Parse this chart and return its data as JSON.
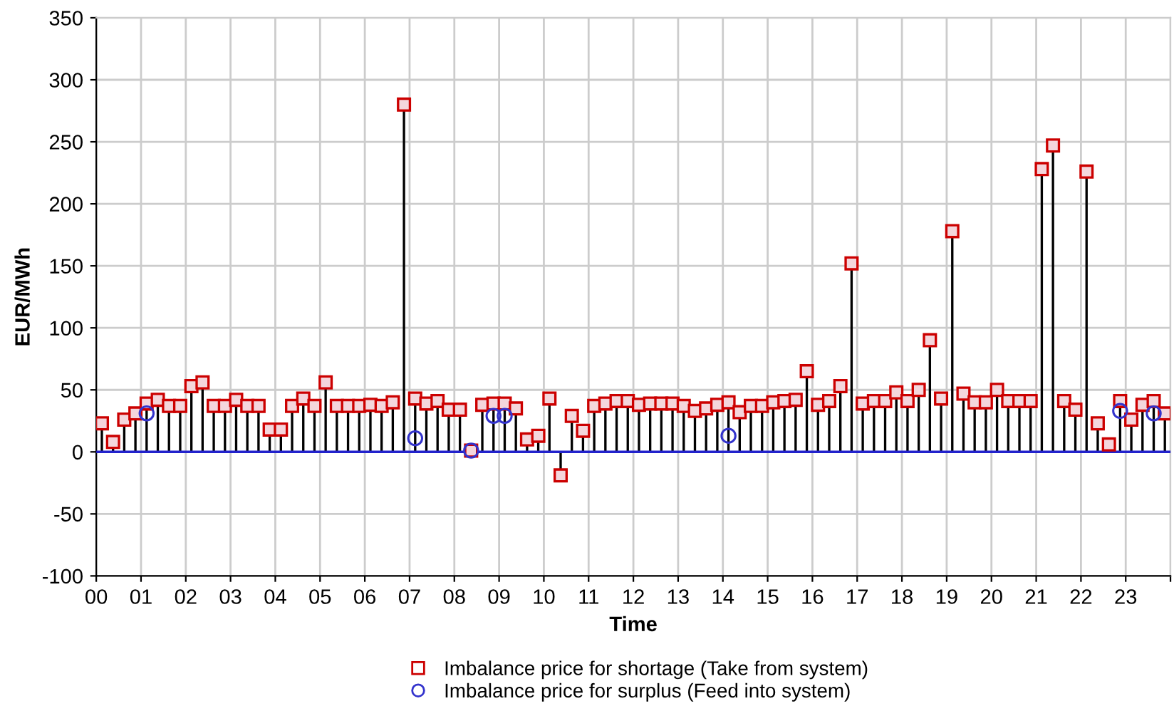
{
  "chart_data": {
    "type": "lollipop",
    "xlabel": "Time",
    "ylabel": "EUR/MWh",
    "x": [
      0.125,
      0.375,
      0.625,
      0.875,
      1.125,
      1.375,
      1.625,
      1.875,
      2.125,
      2.375,
      2.625,
      2.875,
      3.125,
      3.375,
      3.625,
      3.875,
      4.125,
      4.375,
      4.625,
      4.875,
      5.125,
      5.375,
      5.625,
      5.875,
      6.125,
      6.375,
      6.625,
      6.875,
      7.125,
      7.375,
      7.625,
      7.875,
      8.125,
      8.375,
      8.625,
      8.875,
      9.125,
      9.375,
      9.625,
      9.875,
      10.125,
      10.375,
      10.625,
      10.875,
      11.125,
      11.375,
      11.625,
      11.875,
      12.125,
      12.375,
      12.625,
      12.875,
      13.125,
      13.375,
      13.625,
      13.875,
      14.125,
      14.375,
      14.625,
      14.875,
      15.125,
      15.375,
      15.625,
      15.875,
      16.125,
      16.375,
      16.625,
      16.875,
      17.125,
      17.375,
      17.625,
      17.875,
      18.125,
      18.375,
      18.625,
      18.875,
      19.125,
      19.375,
      19.625,
      19.875,
      20.125,
      20.375,
      20.625,
      20.875,
      21.125,
      21.375,
      21.625,
      21.875,
      22.125,
      22.375,
      22.625,
      22.875,
      23.125,
      23.375,
      23.625,
      23.875
    ],
    "series": [
      {
        "name": "Imbalance price for shortage (Take from system)",
        "marker": "square",
        "color": "#cc0000",
        "values": [
          23,
          8,
          26,
          31,
          39,
          42,
          37,
          37,
          53,
          56,
          37,
          37,
          42,
          37,
          37,
          18,
          18,
          37,
          43,
          37,
          56,
          37,
          37,
          37,
          38,
          37,
          40,
          280,
          43,
          39,
          41,
          34,
          34,
          1,
          38,
          39,
          39,
          35,
          10,
          13,
          43,
          -19,
          29,
          17,
          37,
          39,
          41,
          41,
          38,
          39,
          39,
          39,
          37,
          33,
          35,
          38,
          40,
          32,
          37,
          37,
          40,
          41,
          42,
          65,
          38,
          41,
          53,
          152,
          39,
          41,
          41,
          48,
          41,
          50,
          90,
          43,
          178,
          47,
          40,
          40,
          50,
          41,
          41,
          41,
          228,
          247,
          41,
          34,
          226,
          23,
          6,
          41,
          26,
          38,
          41,
          31
        ]
      },
      {
        "name": "Imbalance price for surplus (Feed into system)",
        "type": "scatter",
        "marker": "circle",
        "color": "#3333cc",
        "values": [
          null,
          null,
          null,
          null,
          31,
          null,
          null,
          null,
          null,
          null,
          null,
          null,
          null,
          null,
          null,
          null,
          null,
          null,
          null,
          null,
          null,
          null,
          null,
          null,
          null,
          null,
          null,
          null,
          11,
          null,
          null,
          null,
          null,
          1,
          null,
          29,
          29,
          null,
          null,
          null,
          null,
          null,
          null,
          null,
          null,
          null,
          null,
          null,
          null,
          null,
          null,
          null,
          null,
          null,
          null,
          null,
          13,
          null,
          null,
          null,
          null,
          null,
          null,
          null,
          null,
          null,
          null,
          null,
          null,
          null,
          null,
          null,
          null,
          null,
          null,
          null,
          null,
          null,
          null,
          null,
          null,
          null,
          null,
          null,
          null,
          null,
          null,
          null,
          null,
          null,
          null,
          33,
          null,
          null,
          31,
          null
        ]
      }
    ],
    "xlim": [
      0,
      24
    ],
    "xticks": [
      {
        "value": 0,
        "label": "00"
      },
      {
        "value": 1,
        "label": "01"
      },
      {
        "value": 2,
        "label": "02"
      },
      {
        "value": 3,
        "label": "03"
      },
      {
        "value": 4,
        "label": "04"
      },
      {
        "value": 5,
        "label": "05"
      },
      {
        "value": 6,
        "label": "06"
      },
      {
        "value": 7,
        "label": "07"
      },
      {
        "value": 8,
        "label": "08"
      },
      {
        "value": 9,
        "label": "09"
      },
      {
        "value": 10,
        "label": "10"
      },
      {
        "value": 11,
        "label": "11"
      },
      {
        "value": 12,
        "label": "12"
      },
      {
        "value": 13,
        "label": "13"
      },
      {
        "value": 14,
        "label": "14"
      },
      {
        "value": 15,
        "label": "15"
      },
      {
        "value": 16,
        "label": "16"
      },
      {
        "value": 17,
        "label": "17"
      },
      {
        "value": 18,
        "label": "18"
      },
      {
        "value": 19,
        "label": "19"
      },
      {
        "value": 20,
        "label": "20"
      },
      {
        "value": 21,
        "label": "21"
      },
      {
        "value": 22,
        "label": "22"
      },
      {
        "value": 23,
        "label": "23"
      },
      {
        "value": 24,
        "label": null
      }
    ],
    "ylim": [
      -100,
      350
    ],
    "yticks": [
      -100,
      -50,
      0,
      50,
      100,
      150,
      200,
      250,
      300,
      350
    ],
    "ref_lines": [
      {
        "axis": "y",
        "value": 0,
        "color": "#2222cc"
      }
    ],
    "grid": true,
    "legend": "bottom"
  }
}
